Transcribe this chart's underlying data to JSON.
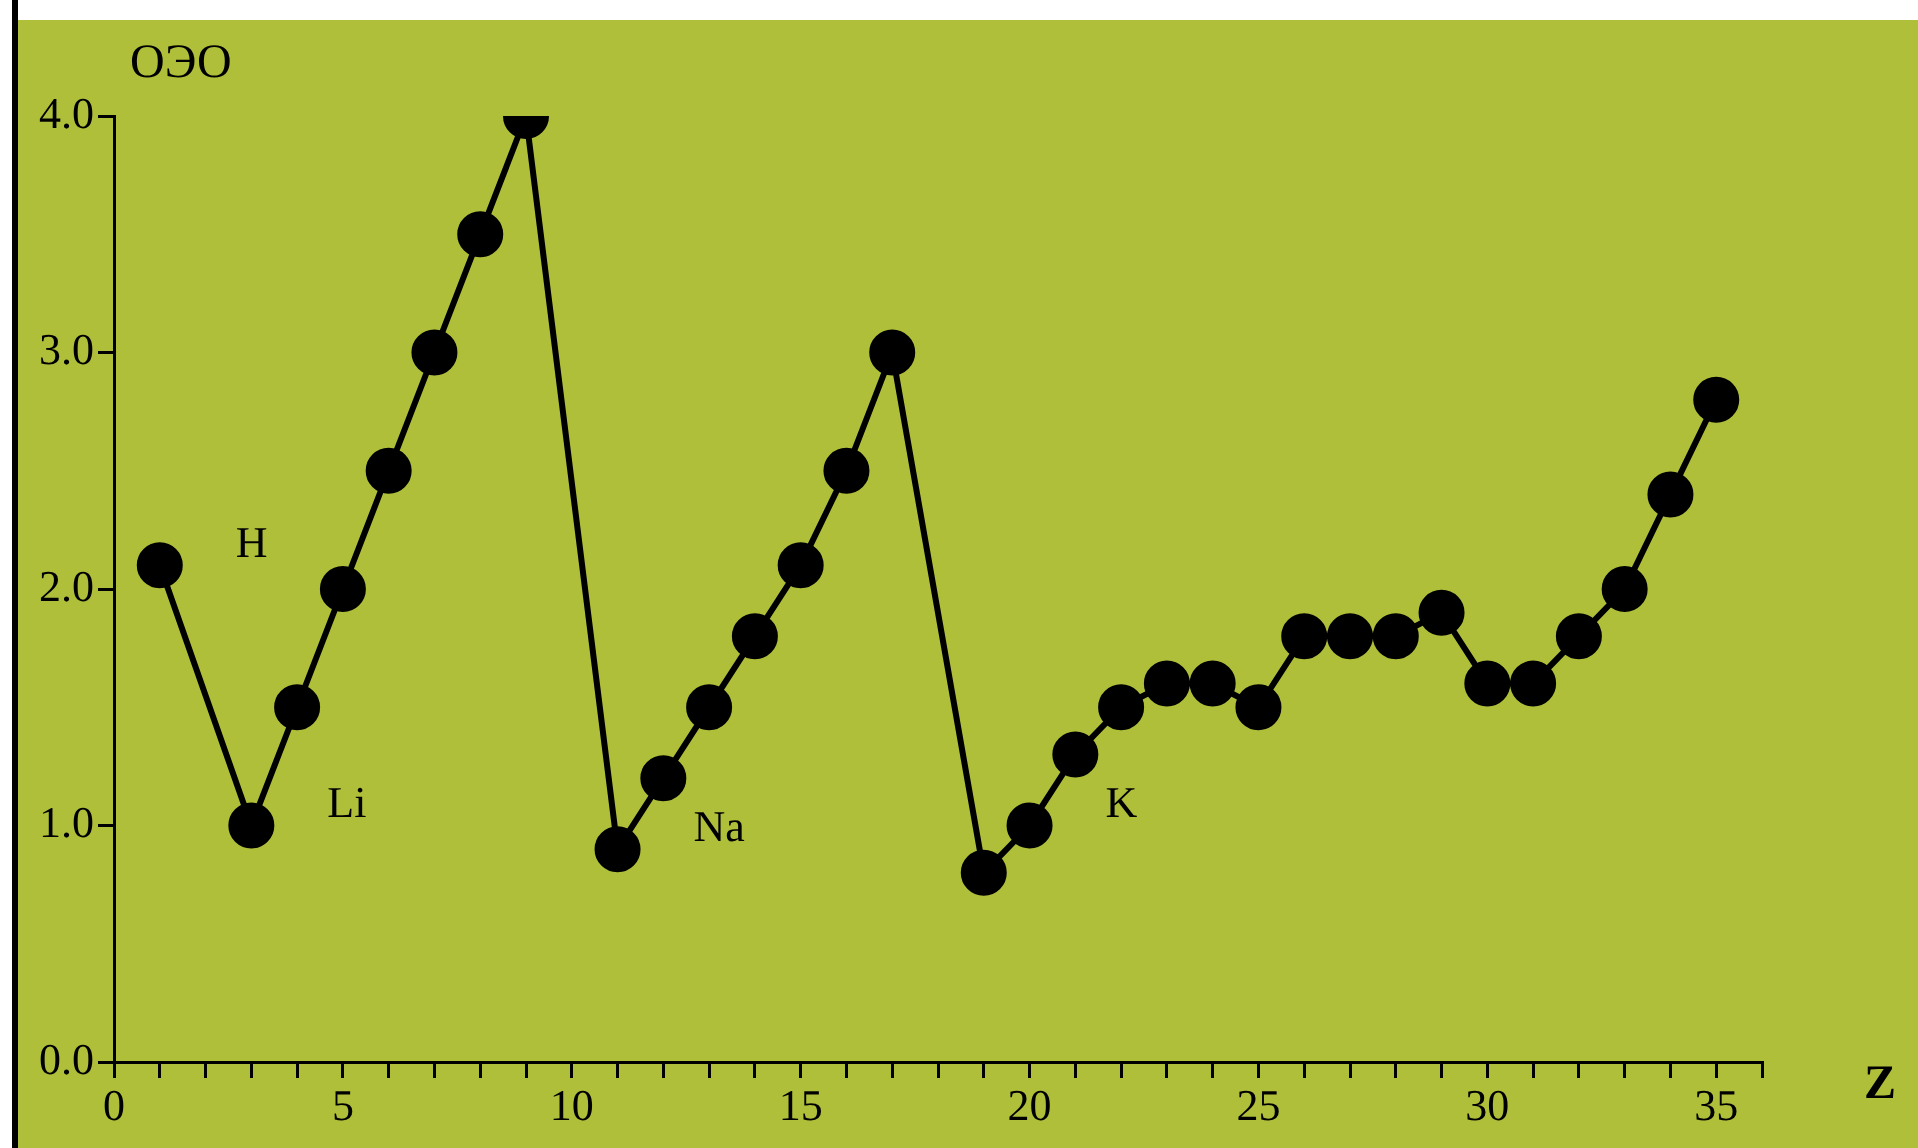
{
  "chart_data": {
    "type": "line",
    "ylabel": "ОЭО",
    "xlabel": "Z",
    "x": [
      1,
      3,
      4,
      5,
      6,
      7,
      8,
      9,
      11,
      12,
      13,
      14,
      15,
      16,
      17,
      19,
      20,
      21,
      22,
      23,
      24,
      25,
      26,
      27,
      28,
      29,
      30,
      31,
      32,
      33,
      34,
      35
    ],
    "series": [
      {
        "color": "#000000",
        "values": [
          2.1,
          1.0,
          1.5,
          2.0,
          2.5,
          3.0,
          3.5,
          4.0,
          0.9,
          1.2,
          1.5,
          1.8,
          2.1,
          2.5,
          3.0,
          0.8,
          1.0,
          1.3,
          1.5,
          1.6,
          1.6,
          1.5,
          1.8,
          1.8,
          1.8,
          1.9,
          1.6,
          1.6,
          1.8,
          2.0,
          2.4,
          2.8
        ]
      }
    ],
    "xlim": [
      0,
      36
    ],
    "xticks": [
      0,
      {
        "value": 1,
        "label": null
      },
      {
        "value": 2,
        "label": null
      },
      {
        "value": 3,
        "label": null
      },
      {
        "value": 4,
        "label": null
      },
      5,
      {
        "value": 6,
        "label": null
      },
      {
        "value": 7,
        "label": null
      },
      {
        "value": 8,
        "label": null
      },
      {
        "value": 9,
        "label": null
      },
      10,
      {
        "value": 11,
        "label": null
      },
      {
        "value": 12,
        "label": null
      },
      {
        "value": 13,
        "label": null
      },
      {
        "value": 14,
        "label": null
      },
      15,
      {
        "value": 16,
        "label": null
      },
      {
        "value": 17,
        "label": null
      },
      {
        "value": 18,
        "label": null
      },
      {
        "value": 19,
        "label": null
      },
      20,
      {
        "value": 21,
        "label": null
      },
      {
        "value": 22,
        "label": null
      },
      {
        "value": 23,
        "label": null
      },
      {
        "value": 24,
        "label": null
      },
      25,
      {
        "value": 26,
        "label": null
      },
      {
        "value": 27,
        "label": null
      },
      {
        "value": 28,
        "label": null
      },
      {
        "value": 29,
        "label": null
      },
      30,
      {
        "value": 31,
        "label": null
      },
      {
        "value": 32,
        "label": null
      },
      {
        "value": 33,
        "label": null
      },
      {
        "value": 34,
        "label": null
      },
      35,
      {
        "value": 36,
        "label": null
      }
    ],
    "ylim": [
      0,
      4
    ],
    "yticks": [
      {
        "value": 0,
        "label": "0.0"
      },
      {
        "value": 1,
        "label": "1.0"
      },
      {
        "value": 2,
        "label": "2.0"
      },
      {
        "value": 3,
        "label": "3.0"
      },
      {
        "value": 4,
        "label": "4.0"
      }
    ],
    "annotations": [
      {
        "text": "H",
        "x": 1,
        "y": 2.1
      },
      {
        "text": "Li",
        "x": 3,
        "y": 1.0
      },
      {
        "text": "Na",
        "x": 11,
        "y": 0.9
      },
      {
        "text": "K",
        "x": 20,
        "y": 1.0
      }
    ],
    "grid": false,
    "legend": false,
    "marker": "circle",
    "line_style": "solid"
  }
}
